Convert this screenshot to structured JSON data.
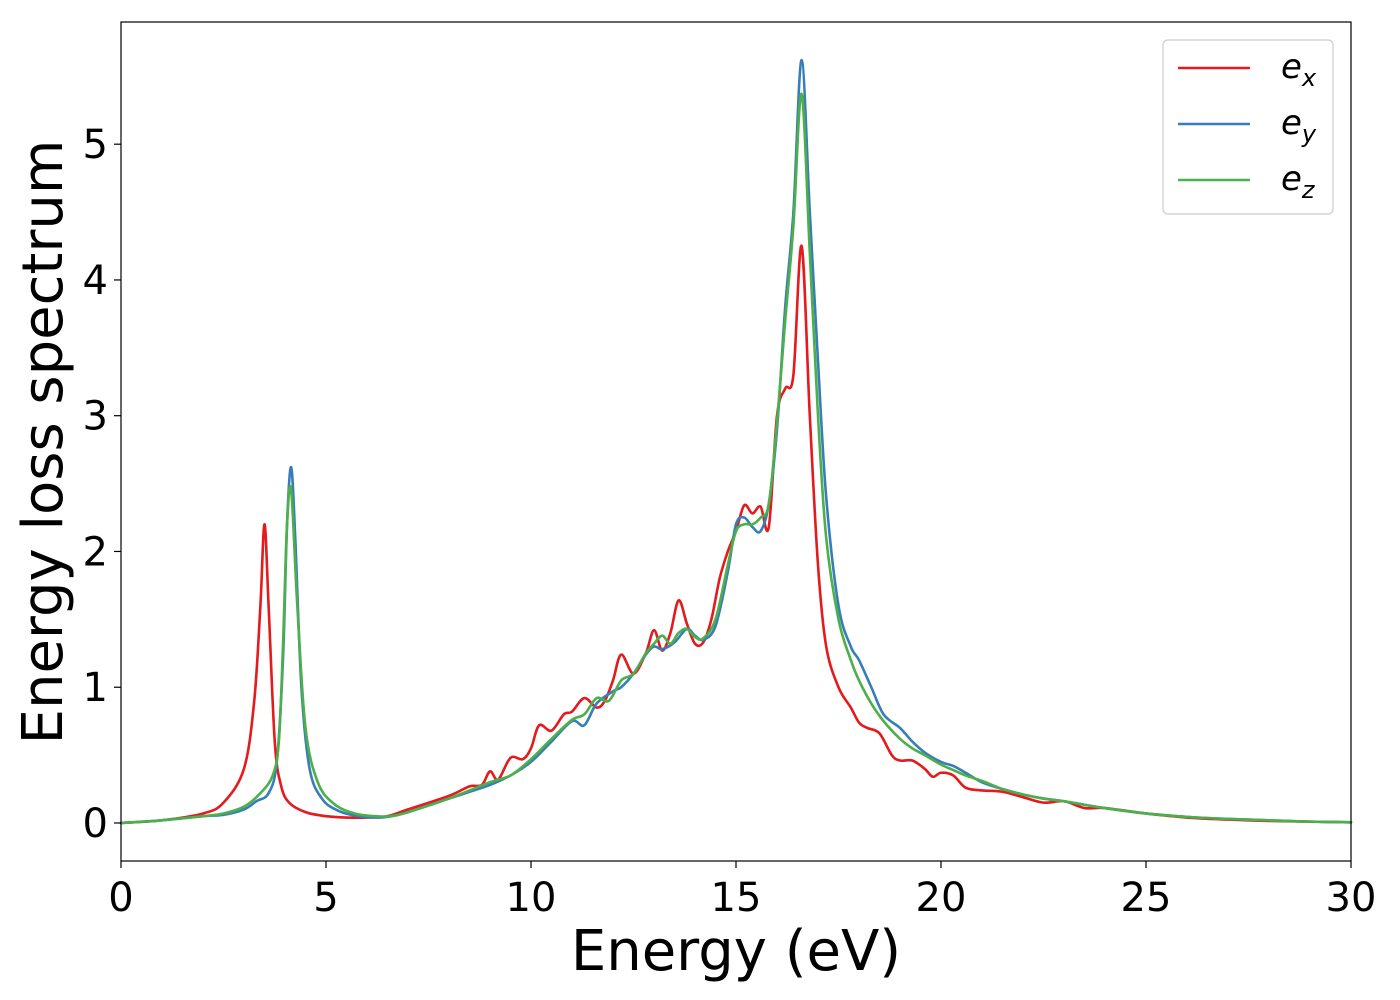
{
  "chart_data": {
    "type": "line",
    "title": "",
    "xlabel": "Energy (eV)",
    "ylabel": "Energy loss spectrum",
    "xlim": [
      0,
      30
    ],
    "ylim": [
      -0.28,
      5.9
    ],
    "xticks": [
      0,
      5,
      10,
      15,
      20,
      25,
      30
    ],
    "xtick_labels": [
      "0",
      "5",
      "10",
      "15",
      "20",
      "25",
      "30"
    ],
    "yticks": [
      0,
      1,
      2,
      3,
      4,
      5
    ],
    "ytick_labels": [
      "0",
      "1",
      "2",
      "3",
      "4",
      "5"
    ],
    "grid": false,
    "legend_position": "top-right",
    "series": [
      {
        "name": "e_x",
        "base": "e",
        "sub": "x",
        "color": "#e41a1c",
        "x": [
          0,
          1,
          2,
          2.5,
          3,
          3.25,
          3.4,
          3.5,
          3.6,
          3.75,
          3.9,
          4.1,
          4.5,
          5,
          5.5,
          6,
          6.5,
          7,
          8,
          8.5,
          8.8,
          9,
          9.2,
          9.5,
          9.8,
          10,
          10.2,
          10.5,
          10.8,
          11,
          11.3,
          11.6,
          11.8,
          12,
          12.2,
          12.5,
          12.8,
          13,
          13.2,
          13.4,
          13.6,
          13.8,
          14,
          14.2,
          14.4,
          14.6,
          14.8,
          15,
          15.2,
          15.4,
          15.6,
          15.8,
          16,
          16.2,
          16.4,
          16.6,
          16.8,
          17,
          17.2,
          17.5,
          17.8,
          18,
          18.2,
          18.5,
          18.8,
          19,
          19.3,
          19.6,
          19.8,
          20,
          20.3,
          20.6,
          21,
          21.5,
          22,
          22.5,
          23,
          23.5,
          24,
          25,
          26,
          27,
          28,
          29,
          30
        ],
        "y": [
          0,
          0.02,
          0.07,
          0.15,
          0.4,
          0.9,
          1.6,
          2.2,
          1.6,
          0.6,
          0.28,
          0.15,
          0.08,
          0.05,
          0.04,
          0.04,
          0.05,
          0.1,
          0.2,
          0.27,
          0.28,
          0.38,
          0.32,
          0.48,
          0.47,
          0.55,
          0.72,
          0.68,
          0.8,
          0.82,
          0.92,
          0.85,
          0.9,
          1.05,
          1.24,
          1.1,
          1.25,
          1.42,
          1.27,
          1.4,
          1.64,
          1.47,
          1.32,
          1.33,
          1.5,
          1.8,
          2.0,
          2.15,
          2.34,
          2.28,
          2.33,
          2.18,
          3.0,
          3.2,
          3.3,
          4.25,
          3.0,
          1.9,
          1.3,
          1.0,
          0.85,
          0.74,
          0.7,
          0.66,
          0.5,
          0.46,
          0.46,
          0.4,
          0.34,
          0.37,
          0.35,
          0.26,
          0.24,
          0.23,
          0.19,
          0.15,
          0.16,
          0.11,
          0.11,
          0.07,
          0.04,
          0.025,
          0.015,
          0.01,
          0.005
        ]
      },
      {
        "name": "e_y",
        "base": "e",
        "sub": "y",
        "color": "#377eb8",
        "x": [
          0,
          1,
          2,
          2.5,
          3,
          3.3,
          3.6,
          3.8,
          3.95,
          4.05,
          4.15,
          4.25,
          4.4,
          4.6,
          4.9,
          5.3,
          5.8,
          6.3,
          6.6,
          7,
          8,
          9,
          9.5,
          10,
          10.5,
          11,
          11.3,
          11.6,
          12,
          12.2,
          12.5,
          12.8,
          13,
          13.2,
          13.5,
          13.8,
          14,
          14.2,
          14.5,
          14.8,
          15,
          15.2,
          15.4,
          15.6,
          15.8,
          16,
          16.2,
          16.4,
          16.6,
          16.8,
          17,
          17.2,
          17.5,
          17.8,
          18,
          18.3,
          18.6,
          19,
          19.3,
          19.6,
          20,
          20.3,
          20.6,
          21,
          21.5,
          22,
          22.5,
          23,
          24,
          25,
          26,
          27,
          28,
          29,
          30
        ],
        "y": [
          0,
          0.02,
          0.05,
          0.06,
          0.1,
          0.16,
          0.22,
          0.45,
          1.2,
          2.2,
          2.62,
          2.1,
          1.0,
          0.4,
          0.18,
          0.09,
          0.05,
          0.04,
          0.05,
          0.08,
          0.18,
          0.28,
          0.35,
          0.45,
          0.6,
          0.75,
          0.72,
          0.88,
          0.97,
          1.0,
          1.1,
          1.24,
          1.3,
          1.28,
          1.33,
          1.43,
          1.38,
          1.35,
          1.45,
          1.85,
          2.2,
          2.25,
          2.18,
          2.15,
          2.35,
          2.9,
          3.8,
          4.5,
          5.62,
          4.5,
          3.4,
          2.4,
          1.6,
          1.3,
          1.2,
          1.0,
          0.8,
          0.7,
          0.6,
          0.52,
          0.45,
          0.42,
          0.37,
          0.3,
          0.25,
          0.21,
          0.18,
          0.16,
          0.11,
          0.07,
          0.045,
          0.03,
          0.02,
          0.01,
          0.005
        ]
      },
      {
        "name": "e_z",
        "base": "e",
        "sub": "z",
        "color": "#4daf4a",
        "x": [
          0,
          1,
          2,
          2.5,
          3,
          3.4,
          3.7,
          3.85,
          3.95,
          4.05,
          4.15,
          4.3,
          4.5,
          4.8,
          5.2,
          5.7,
          6.2,
          6.6,
          7,
          8,
          9,
          9.5,
          10,
          10.5,
          11,
          11.3,
          11.6,
          11.9,
          12.2,
          12.5,
          12.8,
          13,
          13.2,
          13.4,
          13.6,
          13.8,
          14,
          14.2,
          14.5,
          14.8,
          15,
          15.2,
          15.4,
          15.6,
          15.8,
          16,
          16.2,
          16.4,
          16.6,
          16.8,
          17,
          17.2,
          17.5,
          17.8,
          18,
          18.3,
          18.6,
          19,
          19.3,
          19.6,
          20,
          20.3,
          20.6,
          21,
          21.5,
          22,
          22.5,
          23,
          24,
          25,
          26,
          27,
          28,
          29,
          30
        ],
        "y": [
          0,
          0.02,
          0.05,
          0.07,
          0.12,
          0.22,
          0.35,
          0.6,
          1.3,
          2.2,
          2.45,
          1.6,
          0.7,
          0.3,
          0.14,
          0.07,
          0.05,
          0.05,
          0.08,
          0.18,
          0.3,
          0.35,
          0.47,
          0.62,
          0.76,
          0.8,
          0.92,
          0.9,
          1.05,
          1.1,
          1.25,
          1.32,
          1.38,
          1.32,
          1.4,
          1.43,
          1.37,
          1.36,
          1.5,
          1.9,
          2.15,
          2.2,
          2.2,
          2.25,
          2.35,
          2.95,
          3.7,
          4.4,
          5.37,
          4.2,
          3.0,
          2.1,
          1.5,
          1.2,
          1.05,
          0.88,
          0.75,
          0.62,
          0.55,
          0.5,
          0.43,
          0.39,
          0.35,
          0.31,
          0.25,
          0.21,
          0.18,
          0.16,
          0.11,
          0.07,
          0.045,
          0.03,
          0.02,
          0.01,
          0.005
        ]
      }
    ]
  }
}
